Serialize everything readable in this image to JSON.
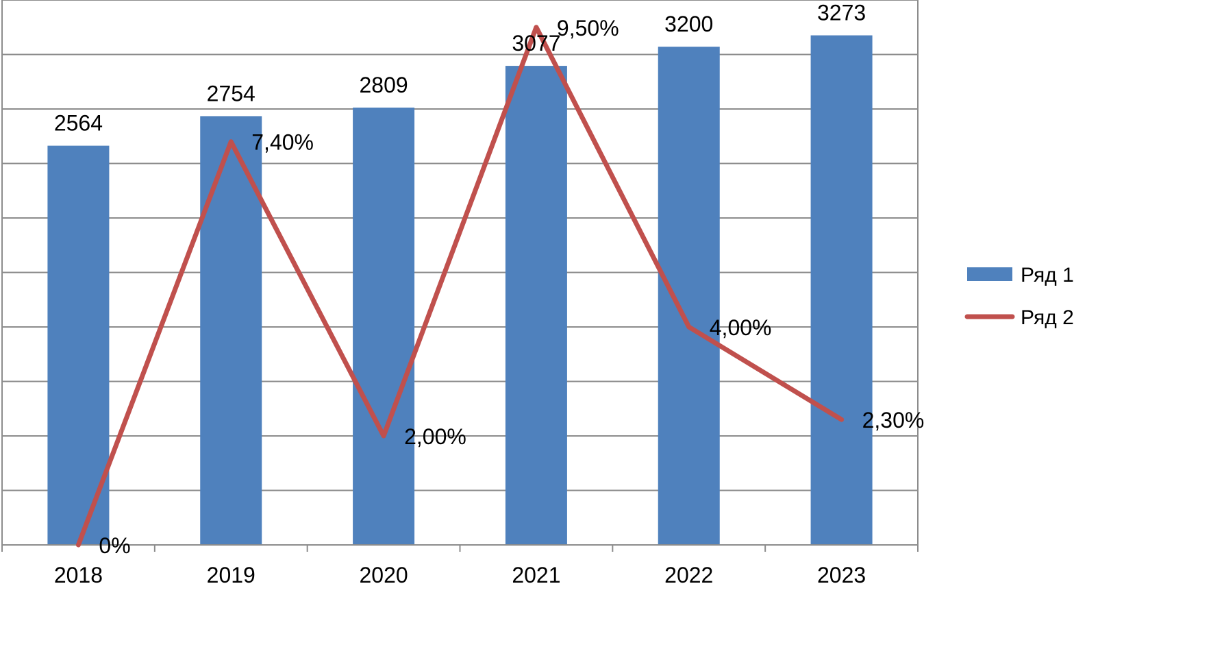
{
  "chart_data": {
    "type": "bar",
    "categories": [
      "2018",
      "2019",
      "2020",
      "2021",
      "2022",
      "2023"
    ],
    "series": [
      {
        "name": "Ряд 1",
        "type": "bar",
        "axis": "primary",
        "values": [
          2564,
          2754,
          2809,
          3077,
          3200,
          3273
        ],
        "labels": [
          "2564",
          "2754",
          "2809",
          "3077",
          "3200",
          "3273"
        ],
        "color": "#4F81BD"
      },
      {
        "name": "Ряд 2",
        "type": "line",
        "axis": "secondary",
        "values": [
          0,
          7.4,
          2.0,
          9.5,
          4.0,
          2.3
        ],
        "labels": [
          "0%",
          "7,40%",
          "2,00%",
          "9,50%",
          "4,00%",
          "2,30%"
        ],
        "color": "#C0504D"
      }
    ],
    "primary_axis": {
      "ylim": [
        0,
        3500
      ],
      "tick_labels_shown": false
    },
    "secondary_axis": {
      "ylim": [
        0,
        10
      ],
      "tick_labels_shown": false
    },
    "grid": true,
    "legend": {
      "position": "right",
      "entries": [
        "Ряд 1",
        "Ряд 2"
      ]
    },
    "title": "",
    "xlabel": "",
    "ylabel": ""
  }
}
